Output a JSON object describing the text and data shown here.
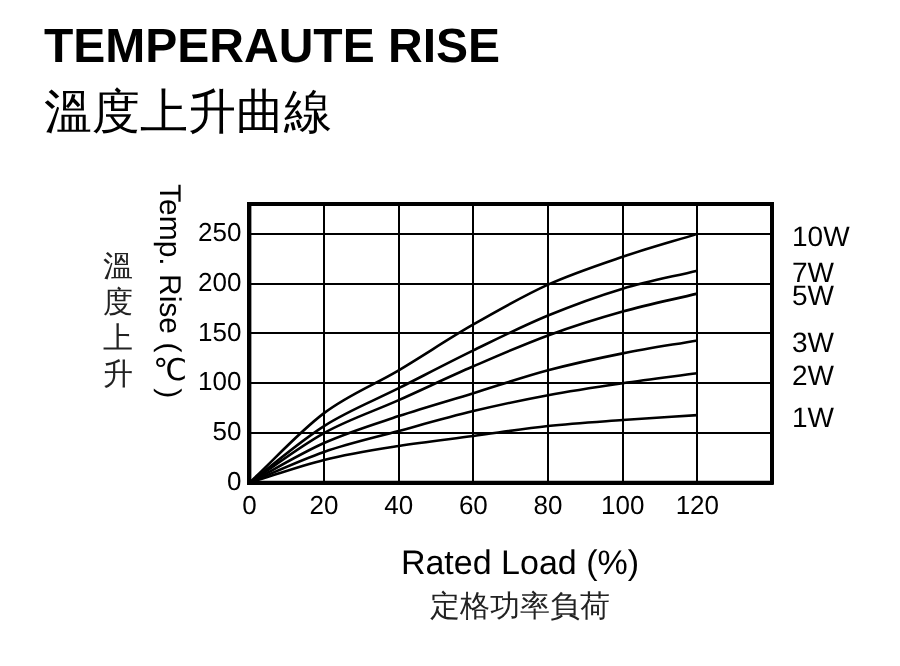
{
  "chart_data": {
    "type": "line",
    "title": "TEMPERAUTE RISE",
    "subtitle": "溫度上升曲線",
    "xlabel": "Rated Load (%)\n定格功率負荷",
    "ylabel": "Temp. Rise (℃)\n溫度上升",
    "x": [
      0,
      20,
      40,
      60,
      80,
      100,
      120
    ],
    "series": [
      {
        "name": "10W",
        "color": "#000000",
        "values": [
          0,
          70,
          113,
          159,
          199,
          227,
          250
        ]
      },
      {
        "name": "7W",
        "color": "#000000",
        "values": [
          0,
          57,
          95,
          133,
          168,
          195,
          213
        ]
      },
      {
        "name": "5W",
        "color": "#000000",
        "values": [
          0,
          50,
          83,
          117,
          148,
          172,
          190
        ]
      },
      {
        "name": "3W",
        "color": "#000000",
        "values": [
          0,
          40,
          67,
          90,
          113,
          130,
          143
        ]
      },
      {
        "name": "2W",
        "color": "#000000",
        "values": [
          0,
          31,
          52,
          72,
          88,
          100,
          110
        ]
      },
      {
        "name": "1W",
        "color": "#000000",
        "values": [
          0,
          23,
          37,
          47,
          57,
          63,
          68
        ]
      }
    ],
    "xlim": [
      0,
      140
    ],
    "xticks": [
      0,
      20,
      40,
      60,
      80,
      100,
      120
    ],
    "ylim": [
      0,
      280
    ],
    "yticks": [
      0,
      50,
      100,
      150,
      200,
      250
    ],
    "grid": true,
    "legend": false,
    "marker": "none",
    "line_style": "solid"
  }
}
